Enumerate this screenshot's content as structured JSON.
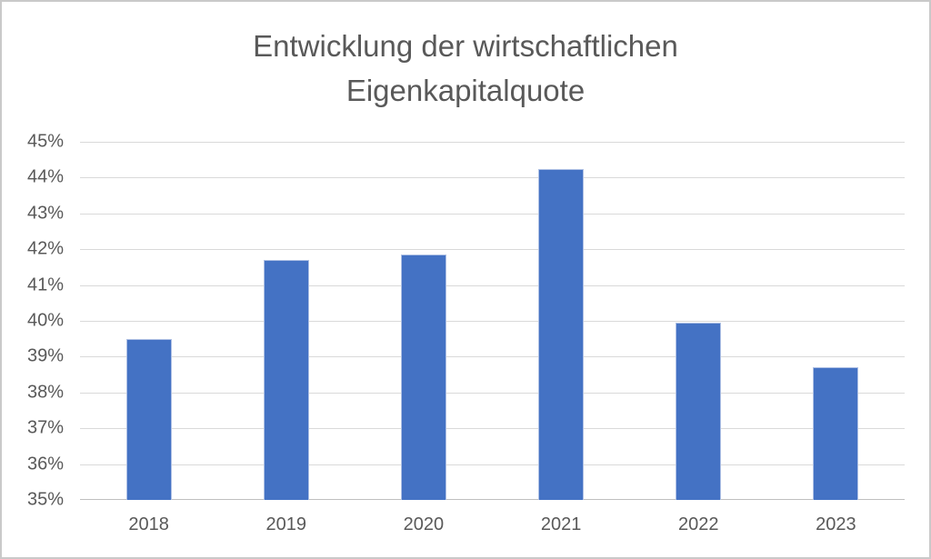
{
  "chart_data": {
    "type": "bar",
    "title": "Entwicklung der wirtschaftlichen Eigenkapitalquote",
    "categories": [
      "2018",
      "2019",
      "2020",
      "2021",
      "2022",
      "2023"
    ],
    "values": [
      39.5,
      41.7,
      41.85,
      44.25,
      39.95,
      38.7
    ],
    "value_unit": "%",
    "ylim": [
      35,
      45
    ],
    "ytick_step": 1,
    "ytick_labels_top_to_bottom": [
      "45%",
      "44%",
      "43%",
      "42%",
      "41%",
      "40%",
      "39%",
      "38%",
      "37%",
      "36%",
      "35%"
    ],
    "grid": true,
    "legend_position": "none",
    "colors": {
      "bar": "#4472c4",
      "bar_border": "#aec0e4",
      "text": "#595959",
      "gridline": "#d9d9d9",
      "axis_line": "#bfbfbf",
      "frame_border": "#c9c9c9"
    }
  }
}
